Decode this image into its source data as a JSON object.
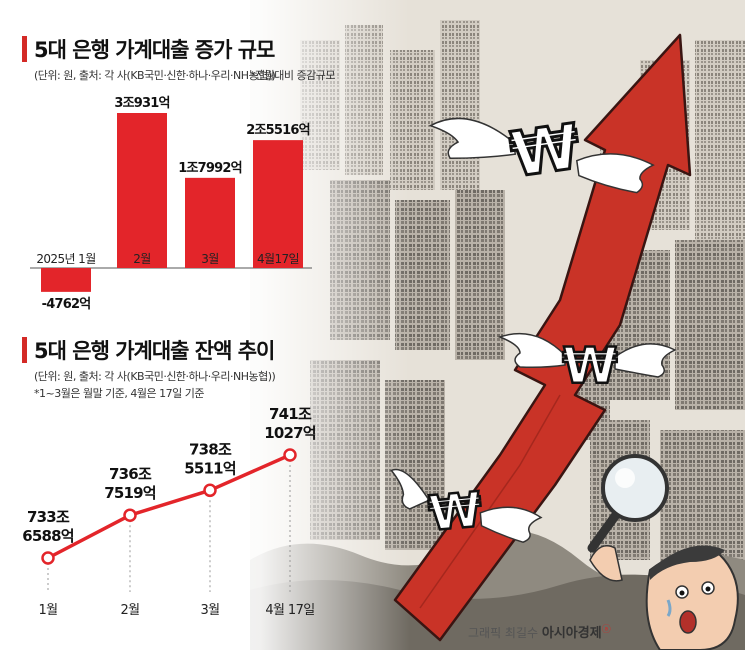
{
  "chart_data": [
    {
      "type": "bar",
      "title": "5대 은행 가계대출 증가 규모",
      "subtitle": "(단위: 원, 출처: 각 사(KB국민·신한·하나·우리·NH농협))",
      "note": "*전월대비 증감규모",
      "categories": [
        "2025년 1월",
        "2월",
        "3월",
        "4월17일"
      ],
      "values": [
        -4762,
        30931,
        17992,
        25516
      ],
      "value_labels": [
        "-4762억",
        "3조931억",
        "1조7992억",
        "2조5516억"
      ],
      "unit": "억원",
      "color": "#e3252a"
    },
    {
      "type": "line",
      "title": "5대 은행 가계대출 잔액 추이",
      "subtitle": "(단위: 원, 출처: 각 사(KB국민·신한·하나·우리·NH농협))",
      "note": "*1~3월은 월말 기준, 4월은 17일 기준",
      "categories": [
        "1월",
        "2월",
        "3월",
        "4월 17일"
      ],
      "values": [
        7336588,
        7367519,
        7385511,
        7411027
      ],
      "value_labels": [
        [
          "733조",
          "6588억"
        ],
        [
          "736조",
          "7519억"
        ],
        [
          "738조",
          "5511억"
        ],
        [
          "741조",
          "1027억"
        ]
      ],
      "unit": "억원",
      "color": "#e3252a"
    }
  ],
  "credit": {
    "artist": "그래픽 최길수",
    "brand": "아시아경제",
    "mark": "ⓐ"
  },
  "colors": {
    "accent": "#d42a26",
    "bar": "#e3252a",
    "arrow": "#c93327"
  },
  "icons": [
    "won-sign-icon",
    "wing-icon",
    "magnifier-icon",
    "worried-man-icon",
    "up-arrow-icon"
  ]
}
